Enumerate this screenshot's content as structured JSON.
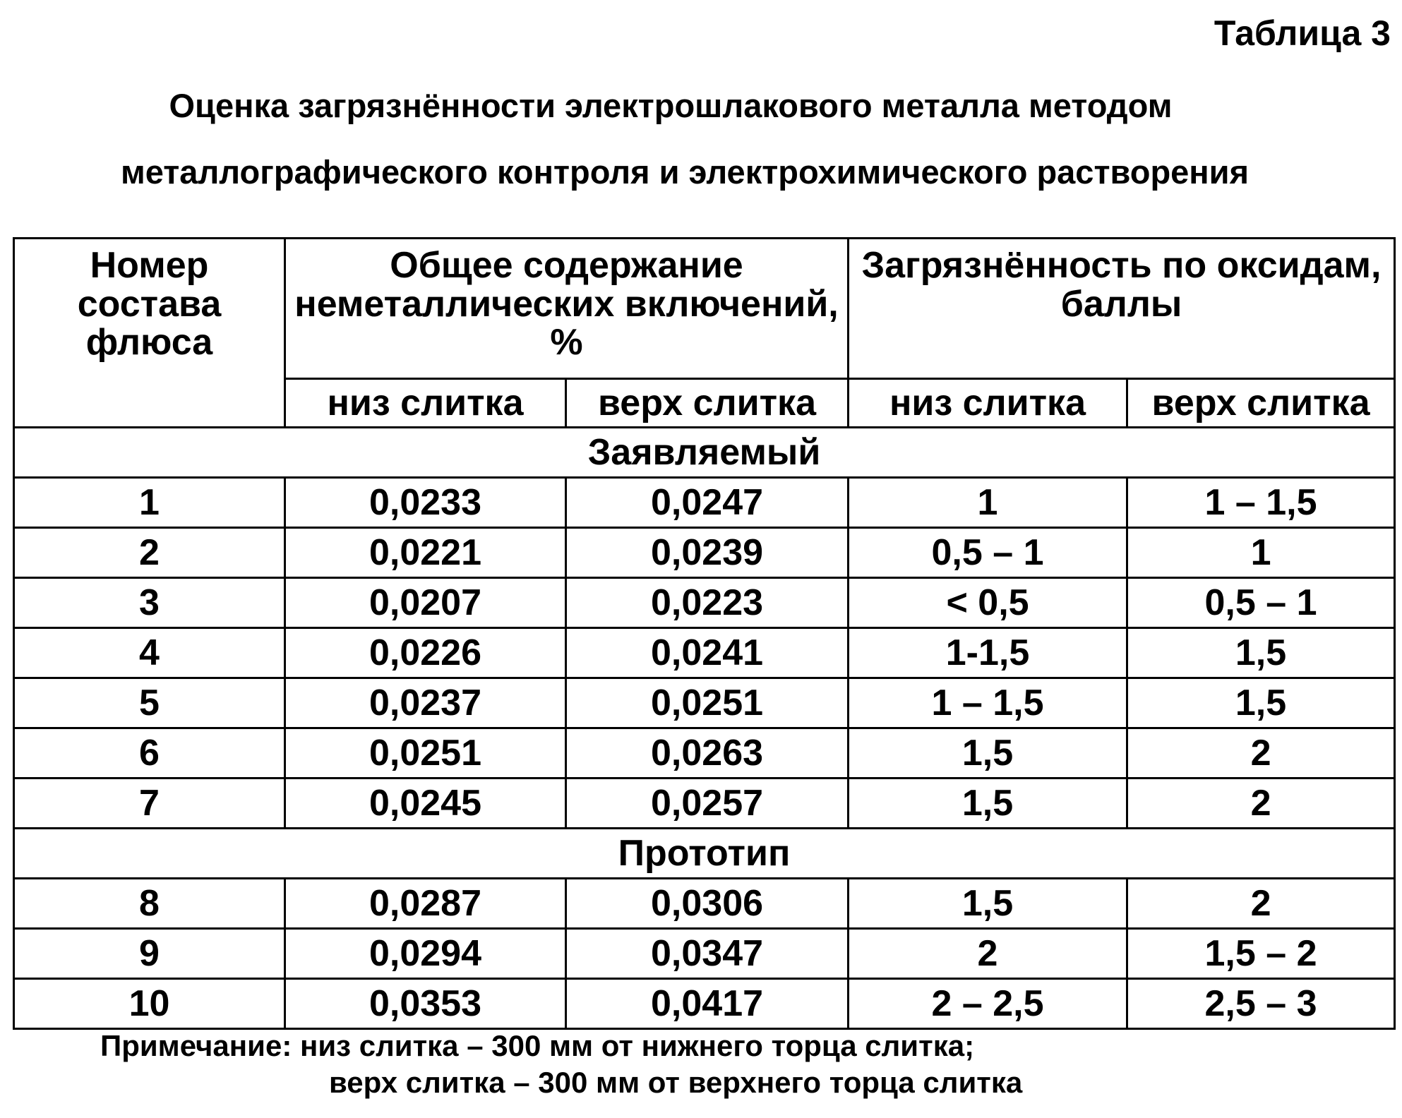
{
  "table_number": "Таблица 3",
  "title_lines": [
    "Оценка загрязнённости электрошлакового металла методом",
    "металлографического контроля и электрохимического растворения"
  ],
  "headers": {
    "col1": "Номер состава флюса",
    "group1": "Общее содержание неметаллических включений, %",
    "group2": "Загрязнённость по оксидам, баллы",
    "sub": [
      "низ слитка",
      "верх слитка",
      "низ слитка",
      "верх слитка"
    ]
  },
  "sections": [
    {
      "label": "Заявляемый",
      "rows": [
        [
          "1",
          "0,0233",
          "0,0247",
          "1",
          "1 – 1,5"
        ],
        [
          "2",
          "0,0221",
          "0,0239",
          "0,5 – 1",
          "1"
        ],
        [
          "3",
          "0,0207",
          "0,0223",
          "< 0,5",
          "0,5 – 1"
        ],
        [
          "4",
          "0,0226",
          "0,0241",
          "1-1,5",
          "1,5"
        ],
        [
          "5",
          "0,0237",
          "0,0251",
          "1 – 1,5",
          "1,5"
        ],
        [
          "6",
          "0,0251",
          "0,0263",
          "1,5",
          "2"
        ],
        [
          "7",
          "0,0245",
          "0,0257",
          "1,5",
          "2"
        ]
      ]
    },
    {
      "label": "Прототип",
      "rows": [
        [
          "8",
          "0,0287",
          "0,0306",
          "1,5",
          "2"
        ],
        [
          "9",
          "0,0294",
          "0,0347",
          "2",
          "1,5 – 2"
        ],
        [
          "10",
          "0,0353",
          "0,0417",
          "2 – 2,5",
          "2,5 – 3"
        ]
      ]
    }
  ],
  "notes": [
    "Примечание: низ слитка – 300 мм от нижнего торца слитка;",
    "верх слитка – 300 мм от верхнего торца слитка"
  ]
}
